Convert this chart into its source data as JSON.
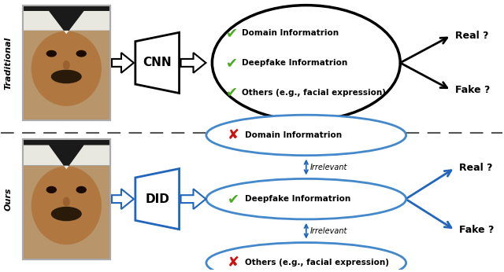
{
  "bg_color": "#ffffff",
  "top_label": "Traditional",
  "bottom_label": "Ours",
  "top_box_label": "CNN",
  "bottom_box_label": "DID",
  "top_items": [
    {
      "symbol": "✔",
      "color": "#4aaa20",
      "text": "Domain Informatrion"
    },
    {
      "symbol": "✔",
      "color": "#4aaa20",
      "text": "Deepfake Informatrion"
    },
    {
      "symbol": "✔",
      "color": "#4aaa20",
      "text": "Others (e.g., facial expression)"
    }
  ],
  "bottom_items": [
    {
      "symbol": "✘",
      "color": "#cc1111",
      "text": "Domain Informatrion"
    },
    {
      "symbol": "✔",
      "color": "#4aaa20",
      "text": "Deepfake Informatrion"
    },
    {
      "symbol": "✘",
      "color": "#cc1111",
      "text": "Others (e.g., facial expression)"
    }
  ],
  "real_label": "Real ?",
  "fake_label": "Fake ?",
  "irrelevant_label": "Irrelevant",
  "arrow_color_top": "#000000",
  "arrow_color_bottom": "#2266bb",
  "ellipse_outline_bottom": "#4488cc",
  "dashed_line_color": "#555555",
  "face_skin": "#c49a6c",
  "face_dark": "#5a3a1a",
  "face_shadow": "#8b6347"
}
